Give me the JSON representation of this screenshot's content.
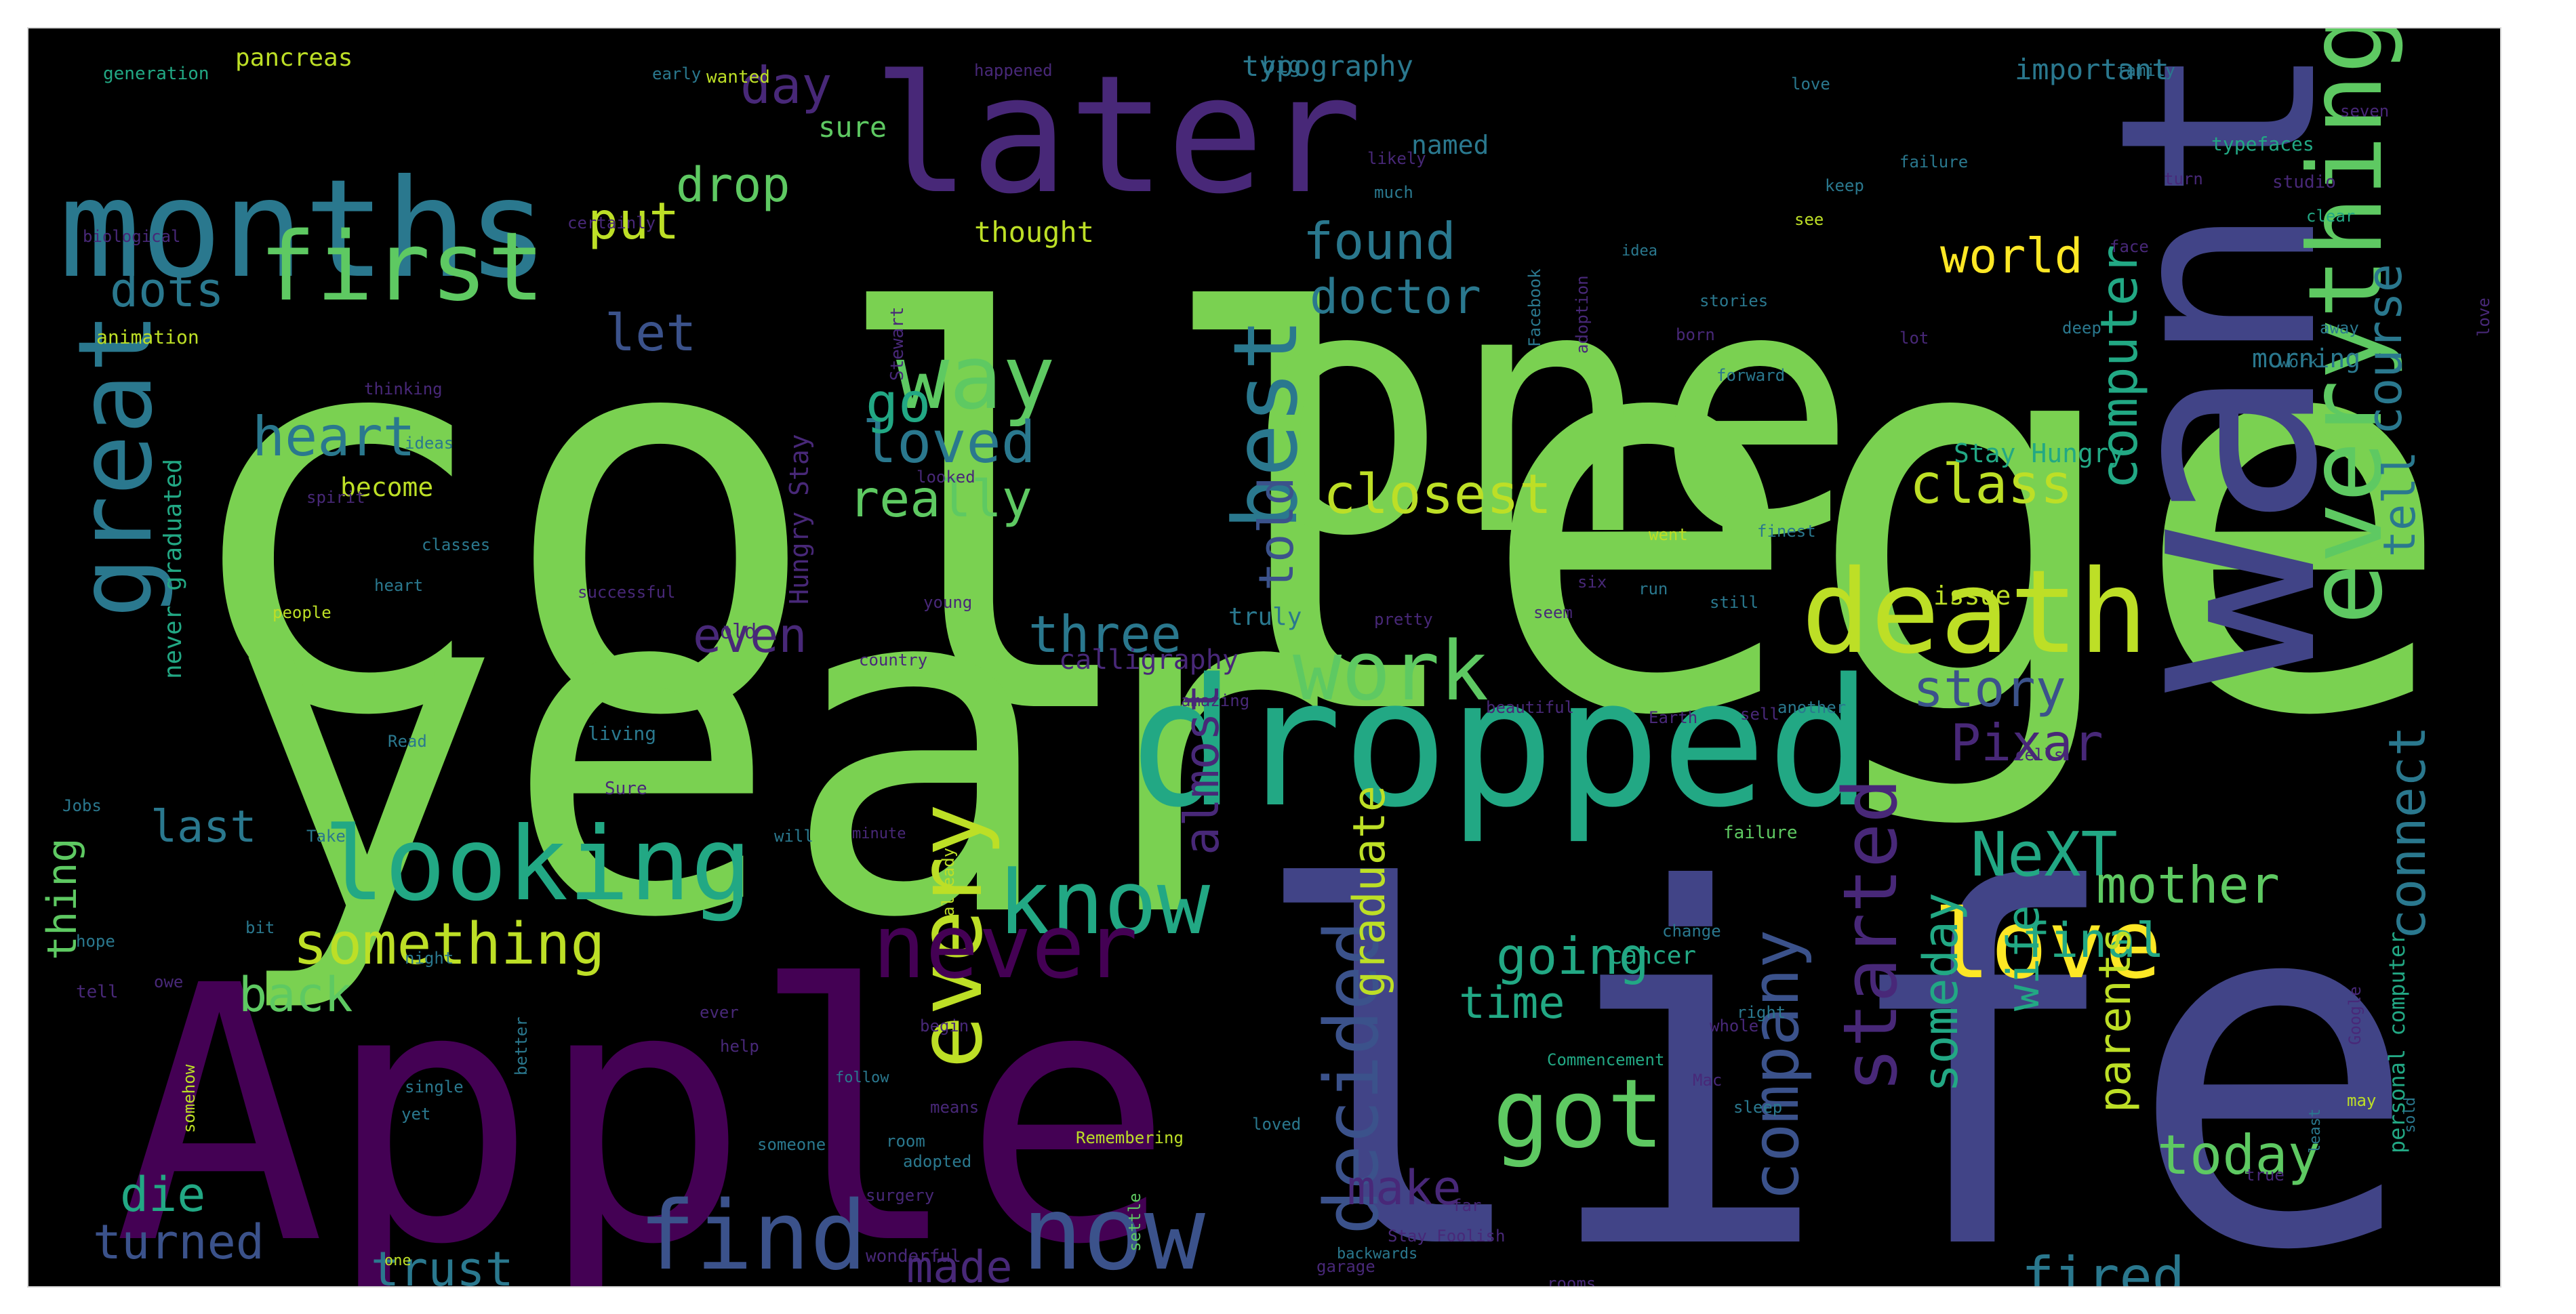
{
  "palette": {
    "background": "#000000",
    "green_light": "#7ad151",
    "green": "#5ec962",
    "teal": "#22a884",
    "teal_dark": "#2a788e",
    "blue": "#414487",
    "blue_slate": "#3b528b",
    "purple": "#440154",
    "purple_mid": "#482878",
    "yellow": "#bddf26",
    "yellow_bright": "#fde725"
  },
  "words": [
    {
      "text": "college",
      "color": "#7ad151"
    },
    {
      "text": "year",
      "color": "#7ad151"
    },
    {
      "text": "Apple",
      "color": "#440154"
    },
    {
      "text": "life",
      "color": "#414487"
    },
    {
      "text": "one",
      "color": "#7ad151"
    },
    {
      "text": "want",
      "color": "#414487"
    },
    {
      "text": "months",
      "color": "#2a788e"
    },
    {
      "text": "later",
      "color": "#482878"
    },
    {
      "text": "dropped",
      "color": "#22a884"
    },
    {
      "text": "looking",
      "color": "#22a884"
    },
    {
      "text": "first",
      "color": "#5ec962"
    },
    {
      "text": "way",
      "color": "#5ec962"
    },
    {
      "text": "best",
      "color": "#2a788e"
    },
    {
      "text": "everything",
      "color": "#5ec962"
    },
    {
      "text": "death",
      "color": "#bddf26"
    },
    {
      "text": "work",
      "color": "#5ec962"
    },
    {
      "text": "great",
      "color": "#2a788e"
    },
    {
      "text": "every",
      "color": "#bddf26"
    },
    {
      "text": "know",
      "color": "#22a884"
    },
    {
      "text": "never",
      "color": "#440154"
    },
    {
      "text": "love",
      "color": "#fde725"
    },
    {
      "text": "now",
      "color": "#3b528b"
    },
    {
      "text": "find",
      "color": "#3b528b"
    },
    {
      "text": "got",
      "color": "#5ec962"
    },
    {
      "text": "something",
      "color": "#bddf26"
    },
    {
      "text": "decided",
      "color": "#3b528b"
    },
    {
      "text": "started",
      "color": "#482878"
    },
    {
      "text": "company",
      "color": "#3b528b"
    },
    {
      "text": "heart",
      "color": "#2a788e"
    },
    {
      "text": "loved",
      "color": "#2a788e"
    },
    {
      "text": "go",
      "color": "#22a884"
    },
    {
      "text": "let",
      "color": "#3b528b"
    },
    {
      "text": "really",
      "color": "#5ec962"
    },
    {
      "text": "closest",
      "color": "#bddf26"
    },
    {
      "text": "found",
      "color": "#2a788e"
    },
    {
      "text": "doctor",
      "color": "#2a788e"
    },
    {
      "text": "put",
      "color": "#bddf26"
    },
    {
      "text": "dots",
      "color": "#2a788e"
    },
    {
      "text": "drop",
      "color": "#5ec962"
    },
    {
      "text": "day",
      "color": "#482878"
    },
    {
      "text": "world",
      "color": "#fde725"
    },
    {
      "text": "course",
      "color": "#2a788e"
    },
    {
      "text": "computer",
      "color": "#22a884"
    },
    {
      "text": "class",
      "color": "#bddf26"
    },
    {
      "text": "tell",
      "color": "#2a788e"
    },
    {
      "text": "connect",
      "color": "#2a788e"
    },
    {
      "text": "story",
      "color": "#3b528b"
    },
    {
      "text": "Pixar",
      "color": "#482878"
    },
    {
      "text": "NeXT",
      "color": "#22a884"
    },
    {
      "text": "mother",
      "color": "#5ec962"
    },
    {
      "text": "final",
      "color": "#22a884"
    },
    {
      "text": "today",
      "color": "#5ec962"
    },
    {
      "text": "fired",
      "color": "#2a788e"
    },
    {
      "text": "wife",
      "color": "#22a884"
    },
    {
      "text": "parents",
      "color": "#bddf26"
    },
    {
      "text": "someday",
      "color": "#22a884"
    },
    {
      "text": "graduate",
      "color": "#bddf26"
    },
    {
      "text": "almost",
      "color": "#482878"
    },
    {
      "text": "told",
      "color": "#3b528b"
    },
    {
      "text": "three",
      "color": "#2a788e"
    },
    {
      "text": "even",
      "color": "#482878"
    },
    {
      "text": "going",
      "color": "#22a884"
    },
    {
      "text": "time",
      "color": "#22a884"
    },
    {
      "text": "make",
      "color": "#482878"
    },
    {
      "text": "made",
      "color": "#482878"
    },
    {
      "text": "trust",
      "color": "#2a788e"
    },
    {
      "text": "turned",
      "color": "#3b528b"
    },
    {
      "text": "die",
      "color": "#22a884"
    },
    {
      "text": "back",
      "color": "#5ec962"
    },
    {
      "text": "last",
      "color": "#2a788e"
    },
    {
      "text": "thing",
      "color": "#5ec962"
    },
    {
      "text": "thought",
      "color": "#bddf26"
    },
    {
      "text": "typography",
      "color": "#2a788e"
    },
    {
      "text": "important",
      "color": "#2a788e"
    },
    {
      "text": "sure",
      "color": "#5ec962"
    },
    {
      "text": "named",
      "color": "#2a788e"
    },
    {
      "text": "become",
      "color": "#bddf26"
    },
    {
      "text": "calligraphy",
      "color": "#482878"
    },
    {
      "text": "truly",
      "color": "#2a788e"
    },
    {
      "text": "Stay Hungry",
      "color": "#22a884"
    },
    {
      "text": "Hungry Stay",
      "color": "#482878"
    },
    {
      "text": "never graduated",
      "color": "#22a884"
    },
    {
      "text": "morning",
      "color": "#2a788e"
    },
    {
      "text": "issue",
      "color": "#bddf26"
    },
    {
      "text": "cancer",
      "color": "#22a884"
    },
    {
      "text": "pancreas",
      "color": "#bddf26"
    },
    {
      "text": "generation",
      "color": "#22a884"
    },
    {
      "text": "happened",
      "color": "#482878"
    },
    {
      "text": "big",
      "color": "#2a788e"
    },
    {
      "text": "family",
      "color": "#2a788e"
    },
    {
      "text": "early",
      "color": "#2a788e"
    },
    {
      "text": "wanted",
      "color": "#bddf26"
    },
    {
      "text": "biological",
      "color": "#482878"
    },
    {
      "text": "certainly",
      "color": "#482878"
    },
    {
      "text": "animation",
      "color": "#bddf26"
    },
    {
      "text": "thinking",
      "color": "#482878"
    },
    {
      "text": "Stewart",
      "color": "#482878"
    },
    {
      "text": "adoption",
      "color": "#482878"
    },
    {
      "text": "likely",
      "color": "#482878"
    },
    {
      "text": "much",
      "color": "#2a788e"
    },
    {
      "text": "love",
      "color": "#2a788e"
    },
    {
      "text": "typefaces",
      "color": "#22a884"
    },
    {
      "text": "studio",
      "color": "#482878"
    },
    {
      "text": "clear",
      "color": "#22a884"
    },
    {
      "text": "stories",
      "color": "#2a788e"
    },
    {
      "text": "idea",
      "color": "#2a788e"
    },
    {
      "text": "Facebook",
      "color": "#2a788e"
    },
    {
      "text": "Catalog",
      "color": "#bddf26"
    },
    {
      "text": "personal computer",
      "color": "#22a884"
    },
    {
      "text": "Commencement",
      "color": "#22a884"
    },
    {
      "text": "wonderful",
      "color": "#482878"
    },
    {
      "text": "garage",
      "color": "#482878"
    },
    {
      "text": "rooms",
      "color": "#482878"
    },
    {
      "text": "backwards",
      "color": "#2a788e"
    },
    {
      "text": "failure",
      "color": "#5ec962"
    },
    {
      "text": "change",
      "color": "#2a788e"
    },
    {
      "text": "minute",
      "color": "#482878"
    },
    {
      "text": "people",
      "color": "#bddf26"
    },
    {
      "text": "young",
      "color": "#482878"
    },
    {
      "text": "country",
      "color": "#482878"
    },
    {
      "text": "amazing",
      "color": "#482878"
    },
    {
      "text": "beautiful",
      "color": "#482878"
    },
    {
      "text": "another",
      "color": "#2a788e"
    },
    {
      "text": "Earth",
      "color": "#482878"
    },
    {
      "text": "still",
      "color": "#2a788e"
    },
    {
      "text": "run",
      "color": "#2a788e"
    },
    {
      "text": "finest",
      "color": "#2a788e"
    },
    {
      "text": "went",
      "color": "#bddf26"
    },
    {
      "text": "living",
      "color": "#2a788e"
    },
    {
      "text": "Read",
      "color": "#2a788e"
    },
    {
      "text": "Sure",
      "color": "#482878"
    },
    {
      "text": "Jobs",
      "color": "#2a788e"
    },
    {
      "text": "Take",
      "color": "#2a788e"
    },
    {
      "text": "hope",
      "color": "#2a788e"
    },
    {
      "text": "tell",
      "color": "#482878"
    },
    {
      "text": "will",
      "color": "#2a788e"
    },
    {
      "text": "somehow",
      "color": "#bddf26"
    },
    {
      "text": "already",
      "color": "#bddf26"
    },
    {
      "text": "settle",
      "color": "#5ec962"
    },
    {
      "text": "loved",
      "color": "#2a788e"
    },
    {
      "text": "someone",
      "color": "#2a788e"
    },
    {
      "text": "follow",
      "color": "#2a788e"
    },
    {
      "text": "room",
      "color": "#2a788e"
    },
    {
      "text": "Remembering",
      "color": "#bddf26"
    },
    {
      "text": "surgery",
      "color": "#482878"
    },
    {
      "text": "better",
      "color": "#2a788e"
    },
    {
      "text": "help",
      "color": "#482878"
    },
    {
      "text": "single",
      "color": "#2a788e"
    },
    {
      "text": "yet",
      "color": "#2a788e"
    },
    {
      "text": "means",
      "color": "#482878"
    },
    {
      "text": "begin",
      "color": "#482878"
    },
    {
      "text": "Mac",
      "color": "#482878"
    },
    {
      "text": "whole",
      "color": "#482878"
    },
    {
      "text": "ever",
      "color": "#482878"
    },
    {
      "text": "one",
      "color": "#bddf26"
    },
    {
      "text": "old",
      "color": "#482878"
    },
    {
      "text": "pretty",
      "color": "#482878"
    },
    {
      "text": "forward",
      "color": "#2a788e"
    },
    {
      "text": "looked",
      "color": "#482878"
    },
    {
      "text": "ideas",
      "color": "#2a788e"
    },
    {
      "text": "spirit",
      "color": "#482878"
    },
    {
      "text": "classes",
      "color": "#2a788e"
    },
    {
      "text": "adopted",
      "color": "#2a788e"
    },
    {
      "text": "Stay Foolish",
      "color": "#482878"
    },
    {
      "text": "far",
      "color": "#482878"
    },
    {
      "text": "Google",
      "color": "#482878"
    },
    {
      "text": "may",
      "color": "#bddf26"
    },
    {
      "text": "true",
      "color": "#482878"
    },
    {
      "text": "sold",
      "color": "#2a788e"
    },
    {
      "text": "least",
      "color": "#2a788e"
    },
    {
      "text": "bit",
      "color": "#2a788e"
    },
    {
      "text": "night",
      "color": "#2a788e"
    },
    {
      "text": "owe",
      "color": "#482878"
    },
    {
      "text": "six",
      "color": "#482878"
    },
    {
      "text": "sell",
      "color": "#482878"
    },
    {
      "text": "cells",
      "color": "#482878"
    },
    {
      "text": "seven",
      "color": "#482878"
    },
    {
      "text": "away",
      "color": "#2a788e"
    },
    {
      "text": "lot",
      "color": "#482878"
    },
    {
      "text": "heart",
      "color": "#2a788e"
    },
    {
      "text": "successful",
      "color": "#482878"
    },
    {
      "text": "seem",
      "color": "#482878"
    },
    {
      "text": "see",
      "color": "#bddf26"
    },
    {
      "text": "face",
      "color": "#482878"
    },
    {
      "text": "love",
      "color": "#482878"
    },
    {
      "text": "work",
      "color": "#2a788e"
    },
    {
      "text": "born",
      "color": "#482878"
    },
    {
      "text": "sleep",
      "color": "#2a788e"
    },
    {
      "text": "right",
      "color": "#2a788e"
    },
    {
      "text": "keep",
      "color": "#2a788e"
    },
    {
      "text": "failure",
      "color": "#2a788e"
    },
    {
      "text": "turn",
      "color": "#482878"
    },
    {
      "text": "deep",
      "color": "#2a788e"
    }
  ]
}
